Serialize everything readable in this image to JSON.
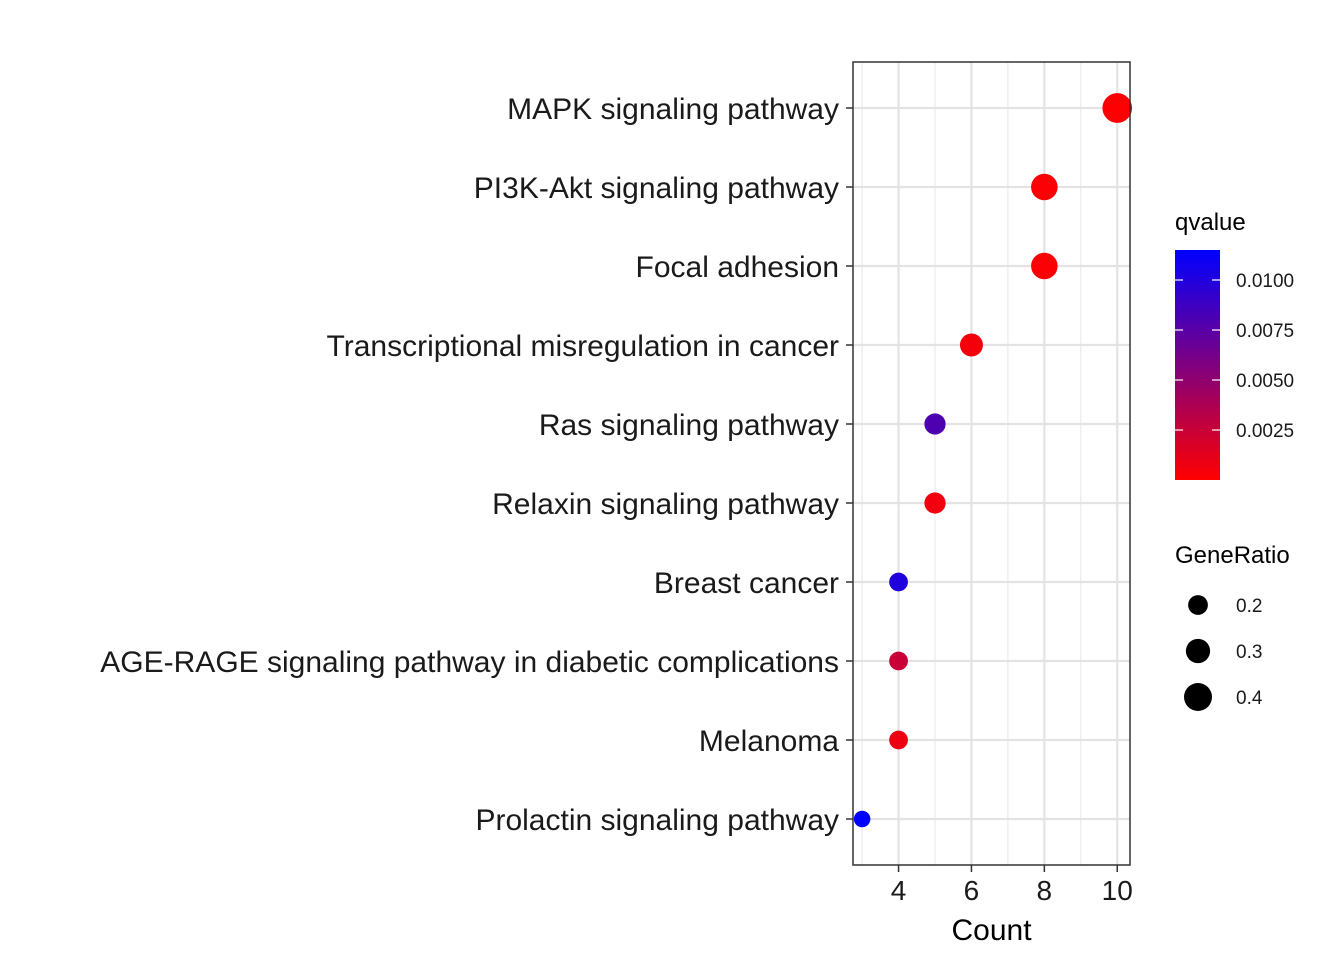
{
  "chart_data": {
    "type": "scatter",
    "xlabel": "Count",
    "ylabel": "",
    "xlim": [
      2.75,
      10.35
    ],
    "x_ticks": [
      4,
      6,
      8,
      10
    ],
    "x_tick_labels": [
      "4",
      "6",
      "8",
      "10"
    ],
    "grid": true,
    "legend_position": "right",
    "categories": [
      "MAPK signaling pathway",
      "PI3K-Akt signaling pathway",
      "Focal adhesion",
      "Transcriptional misregulation in cancer",
      "Ras signaling pathway",
      "Relaxin signaling pathway",
      "Breast cancer",
      "AGE-RAGE signaling pathway in diabetic complications",
      "Melanoma",
      "Prolactin signaling pathway"
    ],
    "points": [
      {
        "category": "MAPK signaling pathway",
        "count": 10,
        "qvalue": 0.0001,
        "gene_ratio": 0.45
      },
      {
        "category": "PI3K-Akt signaling pathway",
        "count": 8,
        "qvalue": 0.0002,
        "gene_ratio": 0.36
      },
      {
        "category": "Focal adhesion",
        "count": 8,
        "qvalue": 0.0002,
        "gene_ratio": 0.36
      },
      {
        "category": "Transcriptional misregulation in cancer",
        "count": 6,
        "qvalue": 0.0005,
        "gene_ratio": 0.27
      },
      {
        "category": "Ras signaling pathway",
        "count": 5,
        "qvalue": 0.008,
        "gene_ratio": 0.23
      },
      {
        "category": "Relaxin signaling pathway",
        "count": 5,
        "qvalue": 0.0006,
        "gene_ratio": 0.23
      },
      {
        "category": "Breast cancer",
        "count": 4,
        "qvalue": 0.01,
        "gene_ratio": 0.18
      },
      {
        "category": "AGE-RAGE signaling pathway in diabetic complications",
        "count": 4,
        "qvalue": 0.0025,
        "gene_ratio": 0.18
      },
      {
        "category": "Melanoma",
        "count": 4,
        "qvalue": 0.0008,
        "gene_ratio": 0.18
      },
      {
        "category": "Prolactin signaling pathway",
        "count": 3,
        "qvalue": 0.0115,
        "gene_ratio": 0.14
      }
    ],
    "color_legend": {
      "title": "qvalue",
      "min": 0.0,
      "max": 0.0115,
      "low_color": "#ff0000",
      "high_color": "#0000ff",
      "ticks": [
        0.01,
        0.0075,
        0.005,
        0.0025
      ],
      "tick_labels": [
        "0.0100",
        "0.0075",
        "0.0050",
        "0.0025"
      ]
    },
    "size_legend": {
      "title": "GeneRatio",
      "values": [
        0.2,
        0.3,
        0.4
      ],
      "labels": [
        "0.2",
        "0.3",
        "0.4"
      ]
    }
  }
}
